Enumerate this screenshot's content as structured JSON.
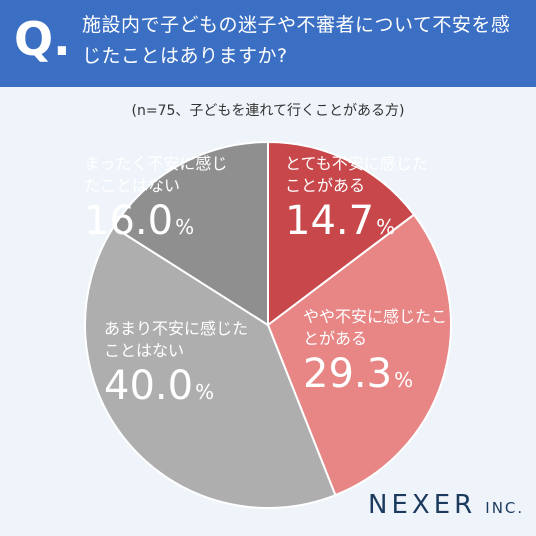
{
  "header": {
    "q_mark": "Q.",
    "question": "施設内で子どもの迷子や不審者について不安を感じたことはありますか?"
  },
  "colors": {
    "header_bg": "#3a6fc4",
    "background": "#eef4f9",
    "slice_colors": [
      "#c8474a",
      "#e88585",
      "#aeaeae",
      "#8f8f8f"
    ]
  },
  "chart_data": {
    "type": "pie",
    "title": "",
    "subtitle": "(n=75、子どもを連れて行くことがある方)",
    "categories": [
      "とても不安に感じたことがある",
      "やや不安に感じたことがある",
      "あまり不安に感じたことはない",
      "まったく不安に感じたことはない"
    ],
    "values": [
      14.7,
      29.3,
      40.0,
      16.0
    ],
    "value_labels": [
      "14.7",
      "29.3",
      "40.0",
      "16.0"
    ],
    "unit": "%",
    "start_angle": "12 o'clock",
    "direction": "clockwise"
  },
  "logo": {
    "name": "NEXER",
    "suffix": "INC."
  }
}
